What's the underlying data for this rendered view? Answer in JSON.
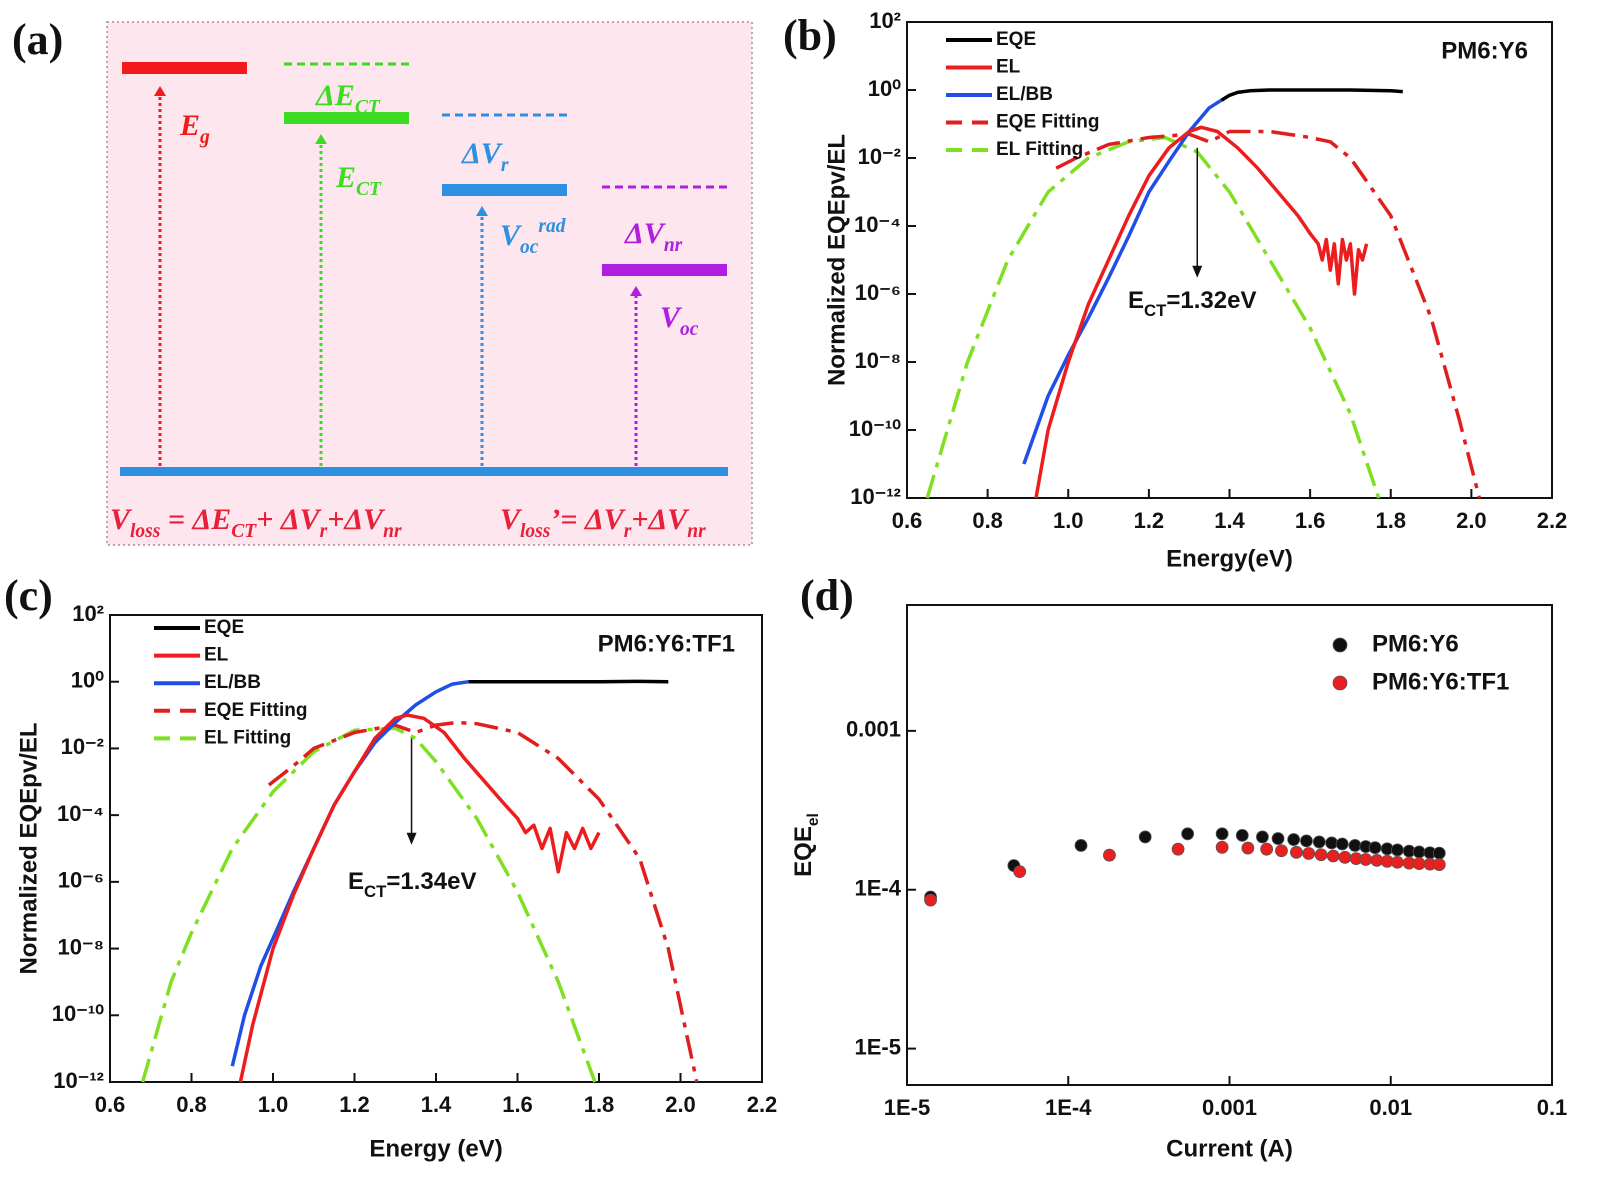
{
  "panel_labels": [
    "(a)",
    "(b)",
    "(c)",
    "(d)"
  ],
  "diagram": {
    "ground_color": "#2f8fe0",
    "formula_color": "#e8203a",
    "levels": [
      {
        "color": "#f21a1a",
        "arrow_label": [
          {
            "t": "E"
          },
          {
            "t": "g",
            "s": "sub"
          }
        ]
      },
      {
        "color": "#3ddc22",
        "gap_label": [
          {
            "t": "ΔE"
          },
          {
            "t": "CT",
            "s": "sub"
          }
        ],
        "arrow_label": [
          {
            "t": "E"
          },
          {
            "t": "CT",
            "s": "sub"
          }
        ]
      },
      {
        "color": "#2f8fe0",
        "gap_label": [
          {
            "t": "ΔV"
          },
          {
            "t": "r",
            "s": "sub"
          }
        ],
        "arrow_label": [
          {
            "t": "V"
          },
          {
            "t": "oc",
            "s": "sub"
          },
          {
            "t": "rad",
            "s": "super"
          }
        ]
      },
      {
        "color": "#b01ee0",
        "gap_label": [
          {
            "t": "ΔV"
          },
          {
            "t": "nr",
            "s": "sub"
          }
        ],
        "arrow_label": [
          {
            "t": "V"
          },
          {
            "t": "oc",
            "s": "sub"
          }
        ]
      }
    ],
    "formulas": [
      [
        {
          "t": "V"
        },
        {
          "t": "loss",
          "s": "sub"
        },
        {
          "t": " = ΔE"
        },
        {
          "t": "CT",
          "s": "sub"
        },
        {
          "t": "+ ΔV"
        },
        {
          "t": "r",
          "s": "sub"
        },
        {
          "t": "+ΔV"
        },
        {
          "t": "nr",
          "s": "sub"
        }
      ],
      [
        {
          "t": "V"
        },
        {
          "t": "loss",
          "s": "sub"
        },
        {
          "t": "’= ΔV"
        },
        {
          "t": "r",
          "s": "sub"
        },
        {
          "t": "+ΔV"
        },
        {
          "t": "nr",
          "s": "sub"
        }
      ]
    ]
  },
  "chart_data": [
    {
      "type": "line",
      "yscale": "log",
      "xlabel": "Energy(eV)",
      "ylabel": "Normalized EQEpv/EL",
      "sample": "PM6:Y6",
      "ect_label": [
        {
          "t": "E"
        },
        {
          "t": "CT",
          "s": "sub"
        },
        {
          "t": "=1.32eV"
        }
      ],
      "arrow": {
        "x": 1.32,
        "from": 0.02,
        "to": 3e-06
      },
      "legend_position": "upper left",
      "xlim": [
        0.6,
        2.2
      ],
      "xticks": [
        0.6,
        0.8,
        {
          "value": 1,
          "label": "1.0"
        },
        1.2,
        1.4,
        1.6,
        1.8,
        {
          "value": 2,
          "label": "2.0"
        },
        2.2
      ],
      "ylim": [
        1e-12,
        100
      ],
      "yticks": [
        {
          "value": 1e-12,
          "label": "10⁻¹²"
        },
        {
          "value": 1e-10,
          "label": "10⁻¹⁰"
        },
        {
          "value": 1e-08,
          "label": "10⁻⁸"
        },
        {
          "value": 1e-06,
          "label": "10⁻⁶"
        },
        {
          "value": 0.0001,
          "label": "10⁻⁴"
        },
        {
          "value": 0.01,
          "label": "10⁻²"
        },
        {
          "value": 1,
          "label": "10⁰"
        },
        {
          "value": 100,
          "label": "10²"
        }
      ],
      "series": [
        {
          "name": "EQE",
          "color": "#000000",
          "style": "solid",
          "x": [
            1.38,
            1.4,
            1.42,
            1.45,
            1.5,
            1.6,
            1.7,
            1.8,
            1.83
          ],
          "values": [
            0.5,
            0.7,
            0.85,
            0.95,
            1,
            1,
            1,
            0.95,
            0.9
          ]
        },
        {
          "name": "EL",
          "color": "#ee1c1c",
          "style": "solid",
          "x": [
            0.92,
            0.95,
            1.0,
            1.05,
            1.1,
            1.15,
            1.2,
            1.25,
            1.3,
            1.33,
            1.37,
            1.42,
            1.47,
            1.52,
            1.57,
            1.6,
            1.62,
            1.63,
            1.64,
            1.65,
            1.66,
            1.67,
            1.68,
            1.69,
            1.7,
            1.71,
            1.72,
            1.73,
            1.74
          ],
          "values": [
            1e-12,
            1e-10,
            1e-08,
            5e-07,
            1e-05,
            0.0002,
            0.003,
            0.02,
            0.06,
            0.08,
            0.06,
            0.02,
            0.005,
            0.001,
            0.0002,
            6e-05,
            3e-05,
            1e-05,
            4e-05,
            5e-06,
            3e-05,
            2e-06,
            4e-05,
            1e-05,
            3e-05,
            1e-06,
            2e-05,
            1e-05,
            3e-05
          ]
        },
        {
          "name": "EL/BB",
          "color": "#1f4fe8",
          "style": "solid",
          "x": [
            0.89,
            0.92,
            0.95,
            1.0,
            1.05,
            1.1,
            1.15,
            1.2,
            1.25,
            1.3,
            1.35,
            1.38
          ],
          "values": [
            1e-11,
            1e-10,
            1e-09,
            1.6e-08,
            2e-07,
            3e-06,
            5e-05,
            0.001,
            0.008,
            0.06,
            0.3,
            0.5
          ]
        },
        {
          "name": "EQE Fitting",
          "color": "#e01e1e",
          "style": "dashdot",
          "x": [
            0.97,
            1.02,
            1.1,
            1.2,
            1.3,
            1.35,
            1.4,
            1.5,
            1.6,
            1.65,
            1.7,
            1.8,
            1.9,
            1.97,
            2.02
          ],
          "values": [
            0.005,
            0.01,
            0.025,
            0.04,
            0.05,
            0.03,
            0.06,
            0.06,
            0.04,
            0.03,
            0.01,
            0.0002,
            2e-07,
            2e-10,
            1e-12
          ]
        },
        {
          "name": "EL  Fitting",
          "color": "#7ee021",
          "style": "dashdot",
          "x": [
            0.65,
            0.75,
            0.85,
            0.95,
            1.05,
            1.15,
            1.24,
            1.32,
            1.4,
            1.5,
            1.6,
            1.7,
            1.77
          ],
          "values": [
            1e-12,
            1e-08,
            1e-05,
            0.001,
            0.01,
            0.03,
            0.04,
            0.015,
            0.001,
            1e-05,
            1e-07,
            3e-10,
            1e-12
          ]
        }
      ]
    },
    {
      "type": "line",
      "yscale": "log",
      "xlabel": "Energy (eV)",
      "ylabel": "Normalized EQEpv/EL",
      "sample": "PM6:Y6:TF1",
      "ect_label": [
        {
          "t": "E"
        },
        {
          "t": "CT",
          "s": "sub"
        },
        {
          "t": "=1.34eV"
        }
      ],
      "arrow": {
        "x": 1.34,
        "from": 0.02,
        "to": 1.3e-05
      },
      "legend_position": "upper left",
      "xlim": [
        0.6,
        2.2
      ],
      "xticks": [
        0.6,
        0.8,
        {
          "value": 1,
          "label": "1.0"
        },
        1.2,
        1.4,
        1.6,
        1.8,
        {
          "value": 2,
          "label": "2.0"
        },
        2.2
      ],
      "ylim": [
        1e-12,
        100
      ],
      "yticks": [
        {
          "value": 1e-12,
          "label": "10⁻¹²"
        },
        {
          "value": 1e-10,
          "label": "10⁻¹⁰"
        },
        {
          "value": 1e-08,
          "label": "10⁻⁸"
        },
        {
          "value": 1e-06,
          "label": "10⁻⁶"
        },
        {
          "value": 0.0001,
          "label": "10⁻⁴"
        },
        {
          "value": 0.01,
          "label": "10⁻²"
        },
        {
          "value": 1,
          "label": "10⁰"
        },
        {
          "value": 100,
          "label": "10²"
        }
      ],
      "series": [
        {
          "name": "EQE",
          "color": "#000000",
          "style": "solid",
          "x": [
            1.48,
            1.6,
            1.7,
            1.8,
            1.9,
            1.97
          ],
          "values": [
            1,
            1,
            1,
            1,
            1.02,
            1
          ]
        },
        {
          "name": "EL",
          "color": "#ee1c1c",
          "style": "solid",
          "x": [
            0.92,
            0.95,
            1.0,
            1.05,
            1.1,
            1.15,
            1.2,
            1.25,
            1.3,
            1.33,
            1.37,
            1.42,
            1.47,
            1.52,
            1.57,
            1.6,
            1.62,
            1.64,
            1.66,
            1.68,
            1.7,
            1.72,
            1.74,
            1.76,
            1.78,
            1.8
          ],
          "values": [
            1e-12,
            5e-11,
            1e-08,
            4e-07,
            1e-05,
            0.0002,
            0.002,
            0.02,
            0.08,
            0.1,
            0.08,
            0.03,
            0.005,
            0.001,
            0.0002,
            8e-05,
            3e-05,
            5e-05,
            1e-05,
            4e-05,
            2e-06,
            3e-05,
            1e-05,
            4e-05,
            1e-05,
            3e-05
          ]
        },
        {
          "name": "EL/BB",
          "color": "#1f4fe8",
          "style": "solid",
          "x": [
            0.9,
            0.93,
            0.97,
            1.0,
            1.05,
            1.1,
            1.15,
            1.2,
            1.25,
            1.3,
            1.35,
            1.4,
            1.44,
            1.48
          ],
          "values": [
            3e-12,
            1e-10,
            3e-09,
            2e-08,
            5e-07,
            1e-05,
            0.0002,
            0.002,
            0.015,
            0.06,
            0.2,
            0.5,
            0.85,
            1
          ]
        },
        {
          "name": "EQE Fitting",
          "color": "#e01e1e",
          "style": "dashdot",
          "x": [
            0.99,
            1.05,
            1.1,
            1.2,
            1.3,
            1.35,
            1.4,
            1.45,
            1.5,
            1.6,
            1.7,
            1.8,
            1.9,
            1.97,
            2.04
          ],
          "values": [
            0.0008,
            0.003,
            0.01,
            0.03,
            0.05,
            0.03,
            0.05,
            0.06,
            0.055,
            0.03,
            0.005,
            0.0003,
            5e-06,
            1e-08,
            1e-12
          ]
        },
        {
          "name": "EL  Fitting",
          "color": "#7ee021",
          "style": "dashdot",
          "x": [
            0.68,
            0.75,
            0.8,
            0.9,
            1.0,
            1.1,
            1.2,
            1.3,
            1.35,
            1.4,
            1.5,
            1.6,
            1.7,
            1.79
          ],
          "values": [
            1e-12,
            1e-09,
            3e-08,
            1e-05,
            0.0005,
            0.008,
            0.035,
            0.04,
            0.02,
            0.004,
            8e-05,
            5e-07,
            1e-09,
            1e-12
          ]
        }
      ]
    },
    {
      "type": "scatter",
      "xscale": "log",
      "yscale": "log",
      "xlabel": "Current (A)",
      "ylabel": [
        {
          "t": "EQE"
        },
        {
          "t": "el",
          "s": "sub"
        }
      ],
      "legend_position": "upper right",
      "xlim": [
        1e-05,
        0.1
      ],
      "xticks": [
        {
          "value": 1e-05,
          "label": "1E-5"
        },
        {
          "value": 0.0001,
          "label": "1E-4"
        },
        0.001,
        0.01,
        0.1
      ],
      "ylim": [
        5.9e-06,
        0.0062
      ],
      "yticks": [
        {
          "value": 1e-05,
          "label": "1E-5"
        },
        {
          "value": 0.0001,
          "label": "1E-4"
        },
        0.001
      ],
      "series": [
        {
          "name": "PM6:Y6",
          "color": "#111111",
          "x": [
            1.4e-05,
            4.6e-05,
            0.00012,
            0.0003,
            0.00055,
            0.0009,
            0.0012,
            0.0016,
            0.002,
            0.0025,
            0.003,
            0.0036,
            0.0043,
            0.005,
            0.006,
            0.007,
            0.008,
            0.0095,
            0.011,
            0.013,
            0.015,
            0.0175,
            0.02
          ],
          "values": [
            9e-05,
            0.000142,
            0.00019,
            0.000215,
            0.000225,
            0.000225,
            0.00022,
            0.000215,
            0.00021,
            0.000207,
            0.000203,
            0.0002,
            0.000197,
            0.000194,
            0.00019,
            0.000187,
            0.000184,
            0.000181,
            0.000178,
            0.000175,
            0.000173,
            0.000171,
            0.00017
          ]
        },
        {
          "name": "PM6:Y6:TF1",
          "color": "#e82020",
          "x": [
            1.4e-05,
            5e-05,
            0.00018,
            0.00048,
            0.0009,
            0.0013,
            0.0017,
            0.0021,
            0.0026,
            0.0031,
            0.0037,
            0.0044,
            0.0052,
            0.0061,
            0.007,
            0.0082,
            0.0095,
            0.011,
            0.013,
            0.015,
            0.0175,
            0.02
          ],
          "values": [
            8.6e-05,
            0.00013,
            0.000165,
            0.00018,
            0.000185,
            0.000183,
            0.00018,
            0.000176,
            0.000172,
            0.000169,
            0.000166,
            0.000163,
            0.00016,
            0.000157,
            0.000155,
            0.000153,
            0.000151,
            0.000149,
            0.000147,
            0.000146,
            0.000145,
            0.000144
          ]
        }
      ]
    }
  ]
}
